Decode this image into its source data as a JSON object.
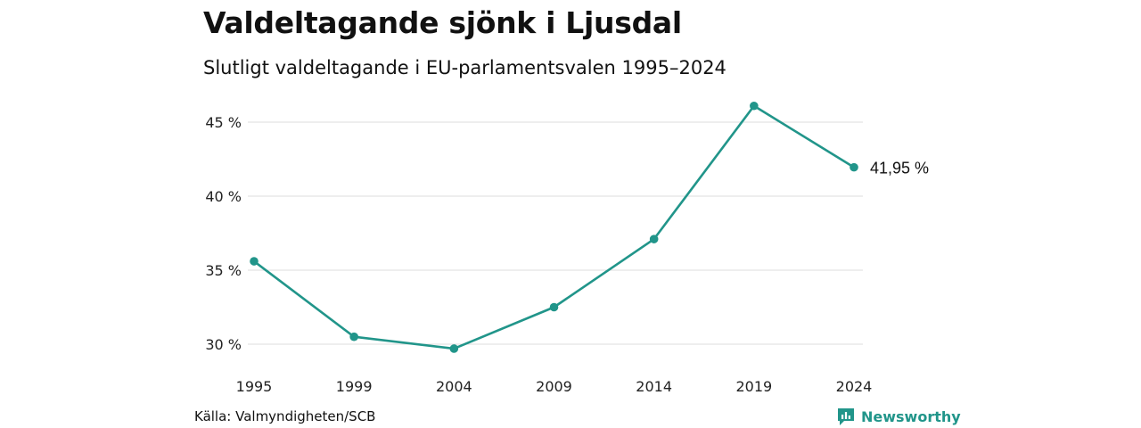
{
  "title": "Valdeltagande sjönk i Ljusdal",
  "subtitle": "Slutligt valdeltagande i EU-parlamentsvalen 1995–2024",
  "source": "Källa: Valmyndigheten/SCB",
  "brand": {
    "name": "Newsworthy",
    "icon": "newsworthy-logo-icon",
    "color": "#21958a"
  },
  "chart_data": {
    "type": "line",
    "categories": [
      "1995",
      "1999",
      "2004",
      "2009",
      "2014",
      "2019",
      "2024"
    ],
    "series": [
      {
        "values": [
          35.6,
          30.5,
          29.7,
          32.5,
          37.1,
          46.1,
          41.95
        ],
        "color": "#21958a"
      }
    ],
    "ylim": [
      30,
      46
    ],
    "yticks": [
      30,
      35,
      40,
      45
    ],
    "ytick_labels": [
      "30 %",
      "35 %",
      "40 %",
      "45 %"
    ],
    "grid": true,
    "annotations": [
      {
        "category": "2024",
        "label": "41,95 %"
      }
    ]
  }
}
